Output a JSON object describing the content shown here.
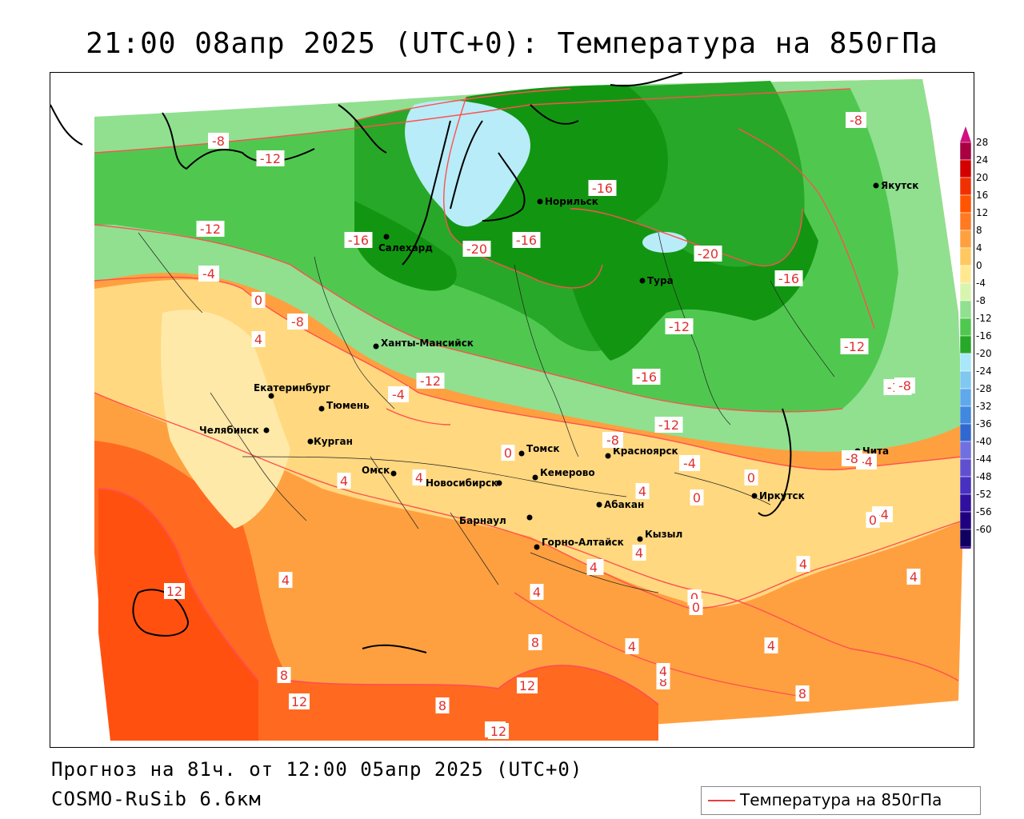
{
  "header": {
    "title": "21:00 08апр 2025 (UTC+0): Температура на 850гПа"
  },
  "footer": {
    "forecast": "Прогноз на 81ч. от 12:00 05апр 2025 (UTC+0)",
    "model": "COSMO-RuSib 6.6км"
  },
  "legend": {
    "label": "Температура на 850гПа",
    "color": "#e84040"
  },
  "colorbar": {
    "ticks": [
      "28",
      "24",
      "20",
      "16",
      "12",
      "8",
      "4",
      "0",
      "-4",
      "-8",
      "-12",
      "-16",
      "-20",
      "-24",
      "-28",
      "-32",
      "-36",
      "-40",
      "-44",
      "-48",
      "-52",
      "-56",
      "-60"
    ],
    "colors": [
      "#a80040",
      "#d40000",
      "#f03000",
      "#ff5500",
      "#ff7a20",
      "#ffa040",
      "#ffc860",
      "#ffe890",
      "#d8f5b0",
      "#90e090",
      "#50c850",
      "#28a828",
      "#a8e8f8",
      "#80c8f0",
      "#60a8ec",
      "#4088e0",
      "#3068d0",
      "#7070e0",
      "#6050d0",
      "#4830c0",
      "#3010a0",
      "#200080",
      "#100060"
    ]
  },
  "cities": [
    {
      "name": "Якутск"
    },
    {
      "name": "Норильск"
    },
    {
      "name": "Салехард"
    },
    {
      "name": "Тура"
    },
    {
      "name": "Ханты-Мансийск"
    },
    {
      "name": "Екатеринбург"
    },
    {
      "name": "Тюмень"
    },
    {
      "name": "Челябинск"
    },
    {
      "name": "Курган"
    },
    {
      "name": "Омск"
    },
    {
      "name": "Томск"
    },
    {
      "name": "Красноярск"
    },
    {
      "name": "Новосибирск"
    },
    {
      "name": "Кемерово"
    },
    {
      "name": "Барнаул"
    },
    {
      "name": "Абакан"
    },
    {
      "name": "Горно-Алтайск"
    },
    {
      "name": "Кызыл"
    },
    {
      "name": "Иркутск"
    },
    {
      "name": "Чита"
    }
  ],
  "isotherm_labels": [
    "-8",
    "-12",
    "-12",
    "-8",
    "-16",
    "-20",
    "-16",
    "-16",
    "-20",
    "-16",
    "-12",
    "-8",
    "-12",
    "-12",
    "-16",
    "-12",
    "-8",
    "-4",
    "-12",
    "-4",
    "-8",
    "-4",
    "-8",
    "0",
    "0",
    "0",
    "0",
    "4",
    "4",
    "4",
    "4",
    "-4",
    "0",
    "4",
    "4",
    "4",
    "12",
    "4",
    "8",
    "12",
    "8",
    "12",
    "8",
    "4",
    "8",
    "4",
    "0",
    "0",
    "4",
    "4",
    "4",
    "8",
    "4",
    "-4",
    "12",
    "12"
  ]
}
